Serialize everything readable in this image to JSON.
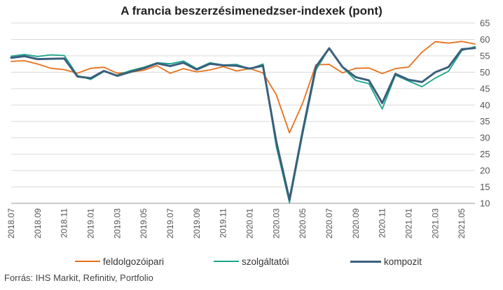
{
  "title": "A francia beszerzésimenedzser-indexek (pont)",
  "source": "Forrás: IHS Markit, Refinitiv, Portfolio",
  "chart_data": {
    "type": "line",
    "title": "A francia beszerzésimenedzser-indexek (pont)",
    "xlabel": "",
    "ylabel": "",
    "ylim": [
      10,
      65
    ],
    "yticks": [
      10,
      15,
      20,
      25,
      30,
      35,
      40,
      45,
      50,
      55,
      60,
      65
    ],
    "y_axis_side": "right",
    "grid": true,
    "legend_position": "bottom",
    "x": [
      "2018.07",
      "2018.08",
      "2018.09",
      "2018.10",
      "2018.11",
      "2018.12",
      "2019.01",
      "2019.02",
      "2019.03",
      "2019.04",
      "2019.05",
      "2019.06",
      "2019.07",
      "2019.08",
      "2019.09",
      "2019.10",
      "2019.11",
      "2019.12",
      "2020.01",
      "2020.02",
      "2020.03",
      "2020.04",
      "2020.05",
      "2020.06",
      "2020.07",
      "2020.08",
      "2020.09",
      "2020.10",
      "2020.11",
      "2020.12",
      "2021.01",
      "2021.02",
      "2021.03",
      "2021.04",
      "2021.05",
      "2021.06"
    ],
    "x_tick_labels": [
      "2018.07",
      "2018.09",
      "2018.11",
      "2019.01",
      "2019.03",
      "2019.05",
      "2019.07",
      "2019.09",
      "2019.11",
      "2020.01",
      "2020.03",
      "2020.05",
      "2020.07",
      "2020.09",
      "2020.11",
      "2021.01",
      "2021.03",
      "2021.05"
    ],
    "series": [
      {
        "name": "feldolgozóipari",
        "color": "#e8701a",
        "values": [
          53.3,
          53.5,
          52.5,
          51.2,
          50.8,
          49.7,
          51.2,
          51.5,
          49.7,
          50.0,
          50.6,
          52.0,
          49.7,
          51.1,
          50.1,
          50.7,
          51.7,
          50.4,
          51.1,
          49.8,
          43.2,
          31.5,
          40.6,
          52.3,
          52.4,
          49.8,
          51.2,
          51.3,
          49.6,
          51.1,
          51.6,
          56.1,
          59.3,
          58.9,
          59.4,
          58.6
        ]
      },
      {
        "name": "szolgáltatói",
        "color": "#1aa58a",
        "values": [
          54.9,
          55.4,
          54.8,
          55.3,
          55.1,
          49.0,
          47.8,
          50.2,
          49.1,
          50.5,
          51.5,
          52.9,
          52.6,
          53.4,
          51.1,
          52.9,
          52.2,
          52.4,
          51.0,
          52.5,
          27.4,
          10.2,
          31.1,
          50.7,
          57.3,
          51.5,
          47.5,
          46.5,
          38.8,
          49.1,
          47.3,
          45.6,
          48.2,
          50.3,
          56.6,
          57.8
        ]
      },
      {
        "name": "kompozit",
        "color": "#3b5f7d",
        "values": [
          54.4,
          54.9,
          54.0,
          54.1,
          54.2,
          48.7,
          48.2,
          50.4,
          48.9,
          50.1,
          51.2,
          52.7,
          51.9,
          52.9,
          50.8,
          52.6,
          52.1,
          52.0,
          51.1,
          52.0,
          28.9,
          11.1,
          32.1,
          51.7,
          57.3,
          51.6,
          48.5,
          47.5,
          40.6,
          49.5,
          47.7,
          47.0,
          50.0,
          51.6,
          57.0,
          57.4
        ]
      }
    ]
  }
}
